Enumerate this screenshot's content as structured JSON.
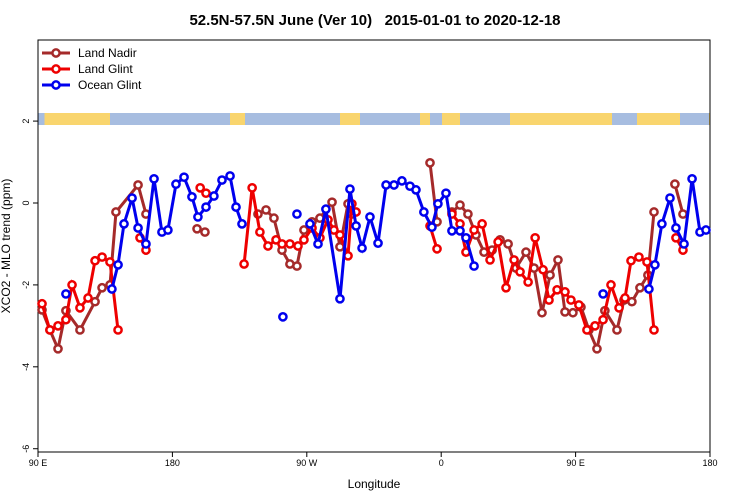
{
  "chart_data": {
    "type": "line",
    "title": "52.5N-57.5N June (Ver 10)   2015-01-01 to 2020-12-18",
    "xlabel": "Longitude",
    "ylabel": "XCO2 - MLO trend (ppm)",
    "xlim": [
      90,
      540
    ],
    "ylim": [
      -6.08,
      3.98
    ],
    "xticks": [
      {
        "value": 90,
        "label": "90 E"
      },
      180,
      {
        "value": 270,
        "label": "90 W"
      },
      {
        "value": 360,
        "label": "0"
      },
      {
        "value": 450,
        "label": "90 E"
      },
      {
        "value": 540,
        "label": "180"
      }
    ],
    "yticks": [
      2,
      0,
      -2,
      -4,
      -6
    ],
    "legend": "top-left",
    "series": [
      {
        "name": "Land Nadir",
        "color": "#a52a2a",
        "x": [
          92.7,
          98,
          103.4,
          108.7,
          118.1,
          128.2,
          132.9,
          138.2,
          142.2,
          157,
          162.3,
          null,
          196.5,
          201.8,
          null,
          237.3,
          242.7,
          248,
          253.4,
          258.7,
          263.4,
          268.1,
          273.5,
          278.8,
          286.9,
          292.2,
          297.6,
          300.2,
          null,
          352.5,
          357.2,
          null,
          367.2,
          372.6,
          377.9,
          383.3,
          388.7,
          394.1,
          399.4,
          404.8,
          410.1,
          416.8,
          422.2,
          427.5,
          432.9,
          438.2,
          442.9,
          448.2,
          453.6,
          458.9,
          464.3,
          469.6,
          477.7,
          482.4,
          487.7,
          493.1,
          498.4,
          502.5,
          null,
          516.5,
          521.9
        ],
        "values": [
          -2.61,
          -3.1,
          -3.56,
          -2.63,
          -3.1,
          -2.41,
          -2.07,
          -2.0,
          -0.22,
          0.44,
          -0.27,
          null,
          -0.63,
          -0.71,
          null,
          -0.27,
          -0.17,
          -0.37,
          -1.15,
          -1.49,
          -1.54,
          -0.66,
          -0.46,
          -0.37,
          0.02,
          -1.07,
          -0.02,
          -0.27,
          null,
          0.98,
          -0.46,
          null,
          -0.22,
          -0.05,
          -0.27,
          -0.78,
          -1.2,
          -1.15,
          -0.9,
          -1.0,
          -1.59,
          -1.2,
          -1.59,
          -2.68,
          -1.76,
          -1.39,
          -2.66,
          -2.68,
          -2.54,
          -3.1,
          -3.56,
          -2.63,
          -3.1,
          -2.37,
          -2.41,
          -2.07,
          -1.76,
          -0.22,
          null,
          0.46,
          -0.27
        ]
      },
      {
        "name": "Land Glint",
        "color": "#ee0000",
        "x": [
          92.7,
          98,
          103.4,
          108.7,
          112.8,
          118.1,
          123.5,
          128.2,
          132.9,
          138.2,
          143.6,
          null,
          158.3,
          162.3,
          null,
          198.6,
          202.5,
          null,
          228,
          233.4,
          238.6,
          244,
          249.4,
          253.4,
          258.7,
          264.1,
          268.1,
          273.5,
          278.8,
          284.2,
          288.2,
          292.2,
          297.6,
          300.2,
          303,
          null,
          352.5,
          357.2,
          null,
          367.2,
          372.6,
          376.6,
          382,
          387.4,
          392.7,
          398.1,
          403.4,
          408.8,
          412.8,
          418.2,
          422.9,
          428.2,
          432.2,
          437.6,
          442.9,
          446.9,
          452.2,
          457.6,
          463,
          468.4,
          473.7,
          479.1,
          483.1,
          487.1,
          492.4,
          497.8,
          502.5,
          null,
          517.2,
          521.9
        ],
        "values": [
          -2.46,
          -3.1,
          -3.0,
          -2.85,
          -2.0,
          -2.56,
          -2.32,
          -1.41,
          -1.32,
          -1.44,
          -3.1,
          null,
          -0.85,
          -1.15,
          null,
          0.37,
          0.24,
          null,
          -1.49,
          0.37,
          -0.71,
          -1.05,
          -0.9,
          -1.0,
          -1.0,
          -1.05,
          -0.9,
          -0.61,
          -0.85,
          -0.41,
          -0.66,
          -0.78,
          -1.29,
          -0.02,
          -0.22,
          null,
          -0.56,
          -1.12,
          null,
          -0.27,
          -0.51,
          -1.2,
          -0.66,
          -0.51,
          -1.39,
          -0.95,
          -2.07,
          -1.39,
          -1.68,
          -1.93,
          -0.85,
          -1.63,
          -2.37,
          -2.12,
          -2.17,
          -2.37,
          -2.49,
          -3.1,
          -3.0,
          -2.85,
          -2.0,
          -2.56,
          -2.32,
          -1.41,
          -1.32,
          -1.44,
          -3.1,
          null,
          -0.85,
          -1.15
        ]
      },
      {
        "name": "Ocean Glint",
        "color": "#0000ee",
        "x": [
          108.7,
          null,
          139.5,
          143.6,
          147.6,
          153,
          157,
          162.3,
          167.7,
          173,
          177,
          182.4,
          187.8,
          193.1,
          197.1,
          202.5,
          207.8,
          213.2,
          218.6,
          222.6,
          226.6,
          null,
          254,
          null,
          263.4,
          null,
          272.1,
          277.5,
          282.8,
          292.2,
          298.9,
          303,
          307,
          312.3,
          317.7,
          323.1,
          328.4,
          333.7,
          339.1,
          343.1,
          348.4,
          353.8,
          357.8,
          363.2,
          367.2,
          372.6,
          376.6,
          382,
          null,
          468.4,
          null,
          499.1,
          503.1,
          507.8,
          513.2,
          517.2,
          522.6,
          528,
          533.3,
          537.3
        ],
        "values": [
          -2.22,
          null,
          -2.1,
          -1.51,
          -0.51,
          0.12,
          -0.61,
          -1.0,
          0.59,
          -0.71,
          -0.66,
          0.46,
          0.63,
          0.15,
          -0.34,
          -0.1,
          0.17,
          0.56,
          0.66,
          -0.1,
          -0.51,
          null,
          -2.78,
          null,
          -0.27,
          null,
          -0.51,
          -1.0,
          -0.15,
          -2.34,
          0.34,
          -0.56,
          -1.1,
          -0.34,
          -0.98,
          0.44,
          0.44,
          0.54,
          0.41,
          0.32,
          -0.22,
          -0.59,
          -0.02,
          0.24,
          -0.68,
          -0.68,
          -0.85,
          -1.54,
          null,
          -2.22,
          null,
          -2.1,
          -1.51,
          -0.51,
          0.12,
          -0.61,
          -1.0,
          0.59,
          -0.71,
          -0.66
        ]
      }
    ]
  }
}
